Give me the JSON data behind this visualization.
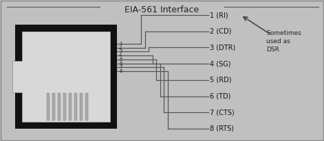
{
  "title": "EIA-561 Interface",
  "bg_color": "#c0c0c0",
  "pin_labels": [
    "1 (RI)",
    "2 (CD)",
    "3 (DTR)",
    "4 (SG)",
    "5 (RD)",
    "6 (TD)",
    "7 (CTS)",
    "8 (RTS)"
  ],
  "pin_numbers": [
    "1",
    "2",
    "3",
    "4",
    "5",
    "6",
    "7",
    "8"
  ],
  "note_text": "Sometimes\nused as\nDSR",
  "line_color": "#555555",
  "text_color": "#222222",
  "label_color": "#111111",
  "note_arrow_color": "#444444"
}
